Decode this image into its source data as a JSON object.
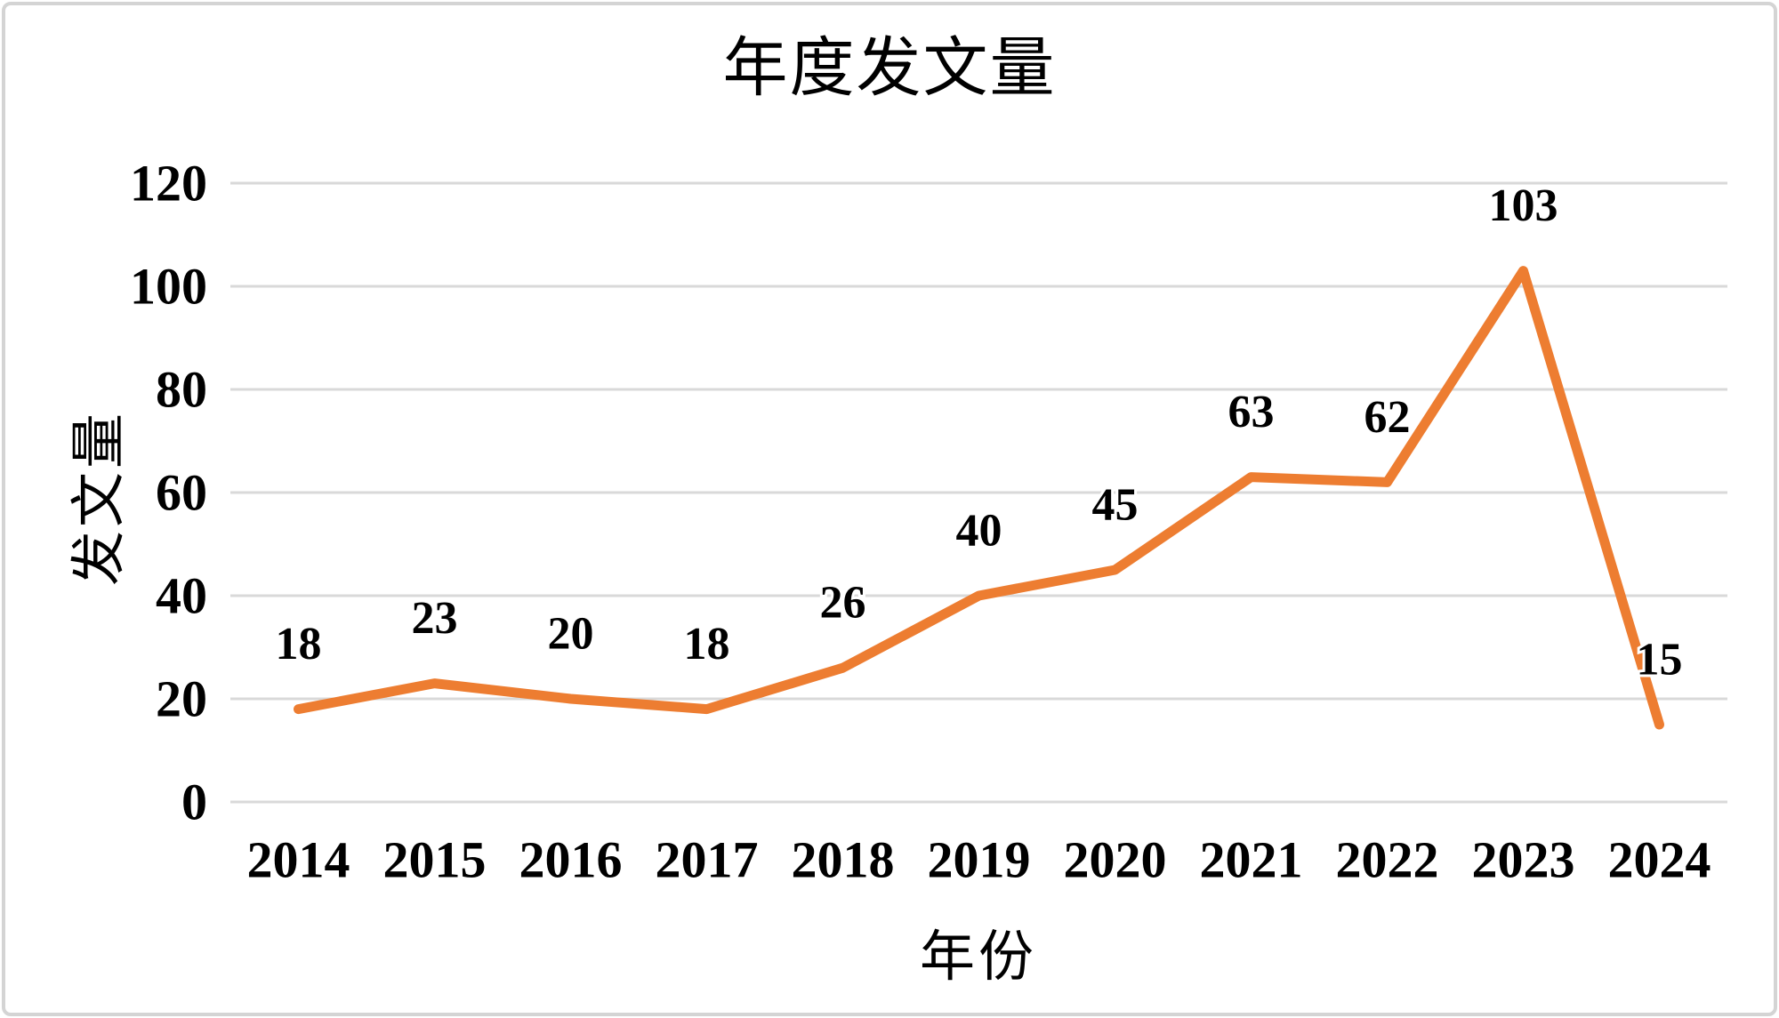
{
  "chart_data": {
    "type": "line",
    "title": "年度发文量",
    "xlabel": "年份",
    "ylabel": "发文量",
    "categories": [
      "2014",
      "2015",
      "2016",
      "2017",
      "2018",
      "2019",
      "2020",
      "2021",
      "2022",
      "2023",
      "2024"
    ],
    "values": [
      18,
      23,
      20,
      18,
      26,
      40,
      45,
      63,
      62,
      103,
      15
    ],
    "yticks": [
      0,
      20,
      40,
      60,
      80,
      100,
      120
    ],
    "ylim": [
      0,
      120
    ],
    "grid": "horizontal",
    "legend": "none",
    "data_label_position": "above",
    "colors": {
      "line": "#ED7D31",
      "gridline": "#D9D9D9",
      "text": "#000000",
      "background": "#FFFFFF",
      "frame_border": "#D4D4D4"
    }
  }
}
